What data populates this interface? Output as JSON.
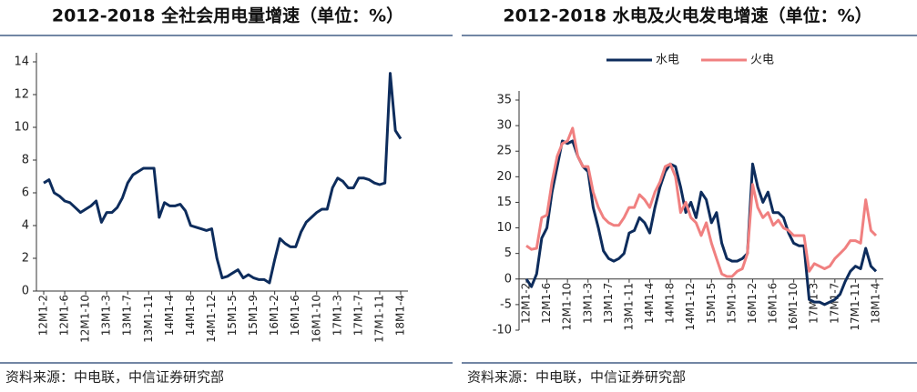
{
  "chart_data": [
    {
      "type": "line",
      "title": "2012-2018 全社会用电量增速（单位：%）",
      "categories": [
        "12M1-2",
        null,
        null,
        null,
        "12M1-6",
        null,
        null,
        null,
        "12M1-10",
        null,
        null,
        null,
        "13M1-3",
        null,
        null,
        null,
        "13M1-7",
        null,
        null,
        null,
        "13M1-11",
        null,
        null,
        null,
        "14M1-4",
        null,
        null,
        null,
        "14M1-8",
        null,
        null,
        null,
        "14M1-12",
        null,
        null,
        null,
        "15M1-5",
        null,
        null,
        null,
        "15M1-9",
        null,
        null,
        null,
        "16M1-2",
        null,
        null,
        null,
        "16M1-6",
        null,
        null,
        null,
        "16M1-10",
        null,
        null,
        null,
        "17M1-3",
        null,
        null,
        null,
        "17M1-7",
        null,
        null,
        null,
        "17M1-11",
        null,
        null,
        null,
        "18M1-4"
      ],
      "values": [
        6.6,
        6.8,
        6.0,
        5.8,
        5.5,
        5.4,
        5.1,
        4.8,
        5.0,
        5.2,
        5.5,
        4.2,
        4.8,
        4.8,
        5.1,
        5.7,
        6.6,
        7.1,
        7.3,
        7.5,
        7.5,
        7.5,
        4.5,
        5.4,
        5.2,
        5.2,
        5.3,
        4.9,
        4.0,
        3.9,
        3.8,
        3.7,
        3.8,
        2.0,
        0.8,
        0.9,
        1.1,
        1.3,
        0.8,
        1.0,
        0.8,
        0.7,
        0.7,
        0.5,
        1.9,
        3.2,
        2.9,
        2.7,
        2.7,
        3.6,
        4.2,
        4.5,
        4.8,
        5.0,
        5.0,
        6.3,
        6.9,
        6.7,
        6.3,
        6.3,
        6.9,
        6.9,
        6.8,
        6.6,
        6.5,
        6.6,
        13.3,
        9.8,
        9.3
      ],
      "color": "#0d2c5c",
      "ylim": [
        0,
        14
      ],
      "yticks": [
        0,
        2,
        4,
        6,
        8,
        10,
        12,
        14
      ],
      "source": "资料来源：中电联，中信证券研究部"
    },
    {
      "type": "line",
      "title": "2012-2018 水电及火电发电增速（单位：%）",
      "categories": [
        "12M1-2",
        null,
        null,
        null,
        "12M1-6",
        null,
        null,
        null,
        "12M1-10",
        null,
        null,
        null,
        "13M1-3",
        null,
        null,
        null,
        "13M1-7",
        null,
        null,
        null,
        "13M1-11",
        null,
        null,
        null,
        "14M1-4",
        null,
        null,
        null,
        "14M1-8",
        null,
        null,
        null,
        "14M1-12",
        null,
        null,
        null,
        "15M1-5",
        null,
        null,
        null,
        "15M1-9",
        null,
        null,
        null,
        "16M1-2",
        null,
        null,
        null,
        "16M1-6",
        null,
        null,
        null,
        "16M1-10",
        null,
        null,
        null,
        "17M1-3",
        null,
        null,
        null,
        "17M1-7",
        null,
        null,
        null,
        "17M1-11",
        null,
        null,
        null,
        "18M1-4"
      ],
      "series": [
        {
          "name": "水电",
          "color": "#0d2c5c",
          "values": [
            0,
            -1.5,
            1,
            8,
            10,
            17,
            22,
            27,
            26.5,
            27,
            24,
            22,
            21,
            14,
            10,
            5.5,
            4,
            3.5,
            4,
            5,
            9,
            9.5,
            12,
            11,
            9,
            14,
            18,
            21,
            22.5,
            22,
            18,
            13,
            15,
            12,
            17,
            15.5,
            11,
            13,
            7,
            4,
            3.5,
            3.5,
            4,
            5,
            22.5,
            18,
            15,
            17,
            13,
            13,
            12,
            9,
            7,
            6.5,
            6.5,
            -4,
            -4.5,
            -4.5,
            -5,
            -4.5,
            -4,
            -3,
            -0.5,
            1.5,
            2.5,
            2,
            6,
            2.5,
            1.5
          ]
        },
        {
          "name": "火电",
          "color": "#f08080",
          "values": [
            6.5,
            5.8,
            6,
            12,
            12.5,
            19,
            24,
            26.5,
            27,
            29.5,
            24,
            22,
            22,
            17,
            14,
            12,
            11,
            10.5,
            10.5,
            12,
            14,
            14,
            16.5,
            15.5,
            14,
            17,
            19,
            22,
            22.5,
            20,
            13,
            15,
            12,
            11,
            8.5,
            11,
            7,
            4,
            1,
            0.5,
            0.5,
            1.5,
            2,
            5,
            18.5,
            14,
            12,
            13,
            10.5,
            11.5,
            10,
            9.5,
            8.5,
            8.5,
            8.5,
            1.5,
            3,
            2.5,
            2,
            2.5,
            4,
            5,
            6,
            7.5,
            7.5,
            7,
            15.5,
            9.5,
            8.5
          ]
        }
      ],
      "ylim": [
        -10,
        35
      ],
      "yticks": [
        -10,
        -5,
        0,
        5,
        10,
        15,
        20,
        25,
        30,
        35
      ],
      "legend": "top",
      "source": "资料来源：中电联，中信证券研究部"
    }
  ]
}
